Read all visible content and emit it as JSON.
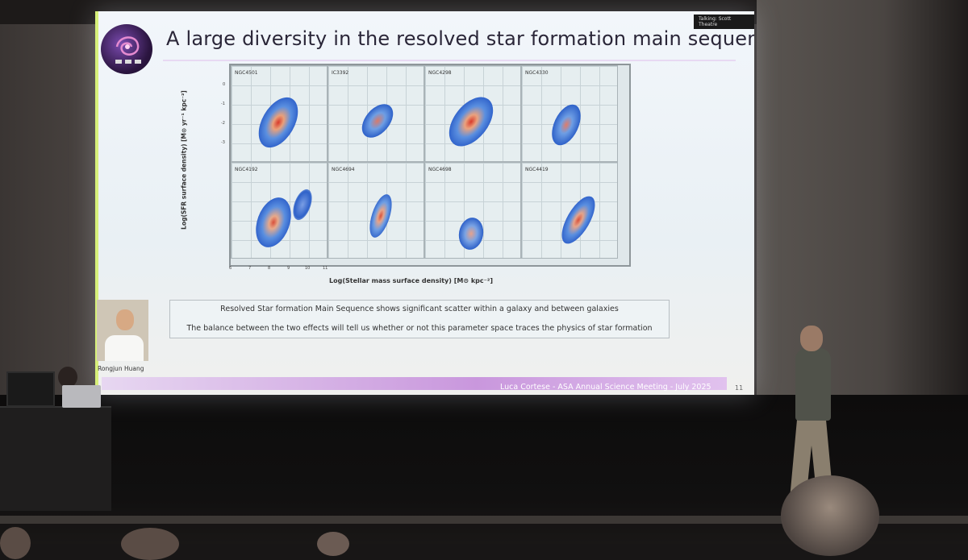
{
  "slide": {
    "title": "A large diversity in the resolved star formation main sequence",
    "venue_tag": "Talking: Scott Theatre",
    "ylabel": "Log(SFR surface density) [M⊙ yr⁻¹ kpc⁻²]",
    "xlabel": "Log(Stellar mass surface density) [M⊙ kpc⁻²]",
    "panels": [
      "NGC4501",
      "IC3392",
      "NGC4298",
      "NGC4330",
      "NGC4192",
      "NGC4694",
      "NGC4698",
      "NGC4419"
    ],
    "x_ticks": [
      "6",
      "7",
      "8",
      "9",
      "10",
      "11"
    ],
    "y_ticks": [
      "0",
      "-1",
      "-2",
      "-3"
    ],
    "note_line1": "Resolved Star formation Main Sequence shows significant scatter within a galaxy and between galaxies",
    "note_line2": "The balance between the two effects will tell us whether or not this parameter space traces the physics of star formation",
    "photo_caption": "Rongjun Huang",
    "footer": "Luca Cortese - ASA Annual Science Meeting - July 2025",
    "page_number": "11"
  },
  "colors": {
    "slide_bg": "#eef3f6",
    "footer_bar": "#c997dd",
    "density_low": "#3f7ad6",
    "density_high": "#d83a2b"
  }
}
